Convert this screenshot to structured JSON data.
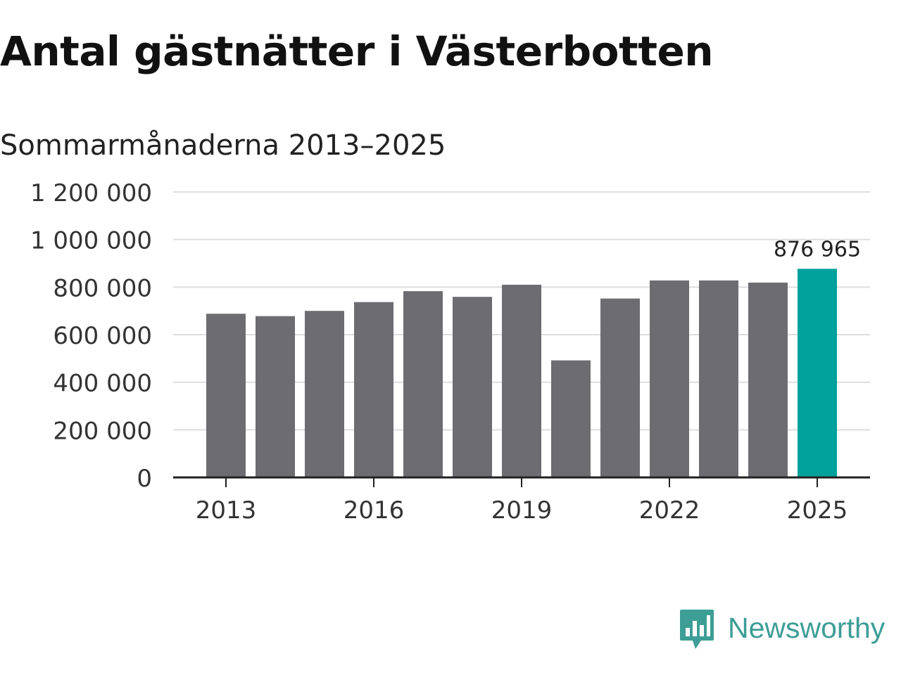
{
  "header": {
    "title": "Antal gästnätter i Västerbotten",
    "subtitle": "Sommarmånaderna 2013–2025"
  },
  "chart_data": {
    "type": "bar",
    "categories": [
      "2013",
      "2014",
      "2015",
      "2016",
      "2017",
      "2018",
      "2019",
      "2020",
      "2021",
      "2022",
      "2023",
      "2024",
      "2025"
    ],
    "values": [
      688000,
      678000,
      700000,
      737000,
      783000,
      759000,
      810000,
      492000,
      752000,
      828000,
      828000,
      819000,
      876965
    ],
    "highlight_index": 12,
    "highlight_label": "876 965",
    "ylim": [
      0,
      1200000
    ],
    "y_ticks": [
      0,
      200000,
      400000,
      600000,
      800000,
      1000000,
      1200000
    ],
    "y_tick_labels": [
      "0",
      "200 000",
      "400 000",
      "600 000",
      "800 000",
      "1 000 000",
      "1 200 000"
    ],
    "x_ticks": [
      "2013",
      "2016",
      "2019",
      "2022",
      "2025"
    ],
    "xlabel": "",
    "ylabel": "",
    "grid": true,
    "colors": {
      "bar": "#6d6c71",
      "highlight": "#00a29b",
      "grid": "#dedede",
      "axis": "#222222"
    }
  },
  "branding": {
    "logo_text": "Newsworthy",
    "logo_icon": "newsworthy-chart-bubble-icon",
    "logo_color": "#3d9e96"
  }
}
